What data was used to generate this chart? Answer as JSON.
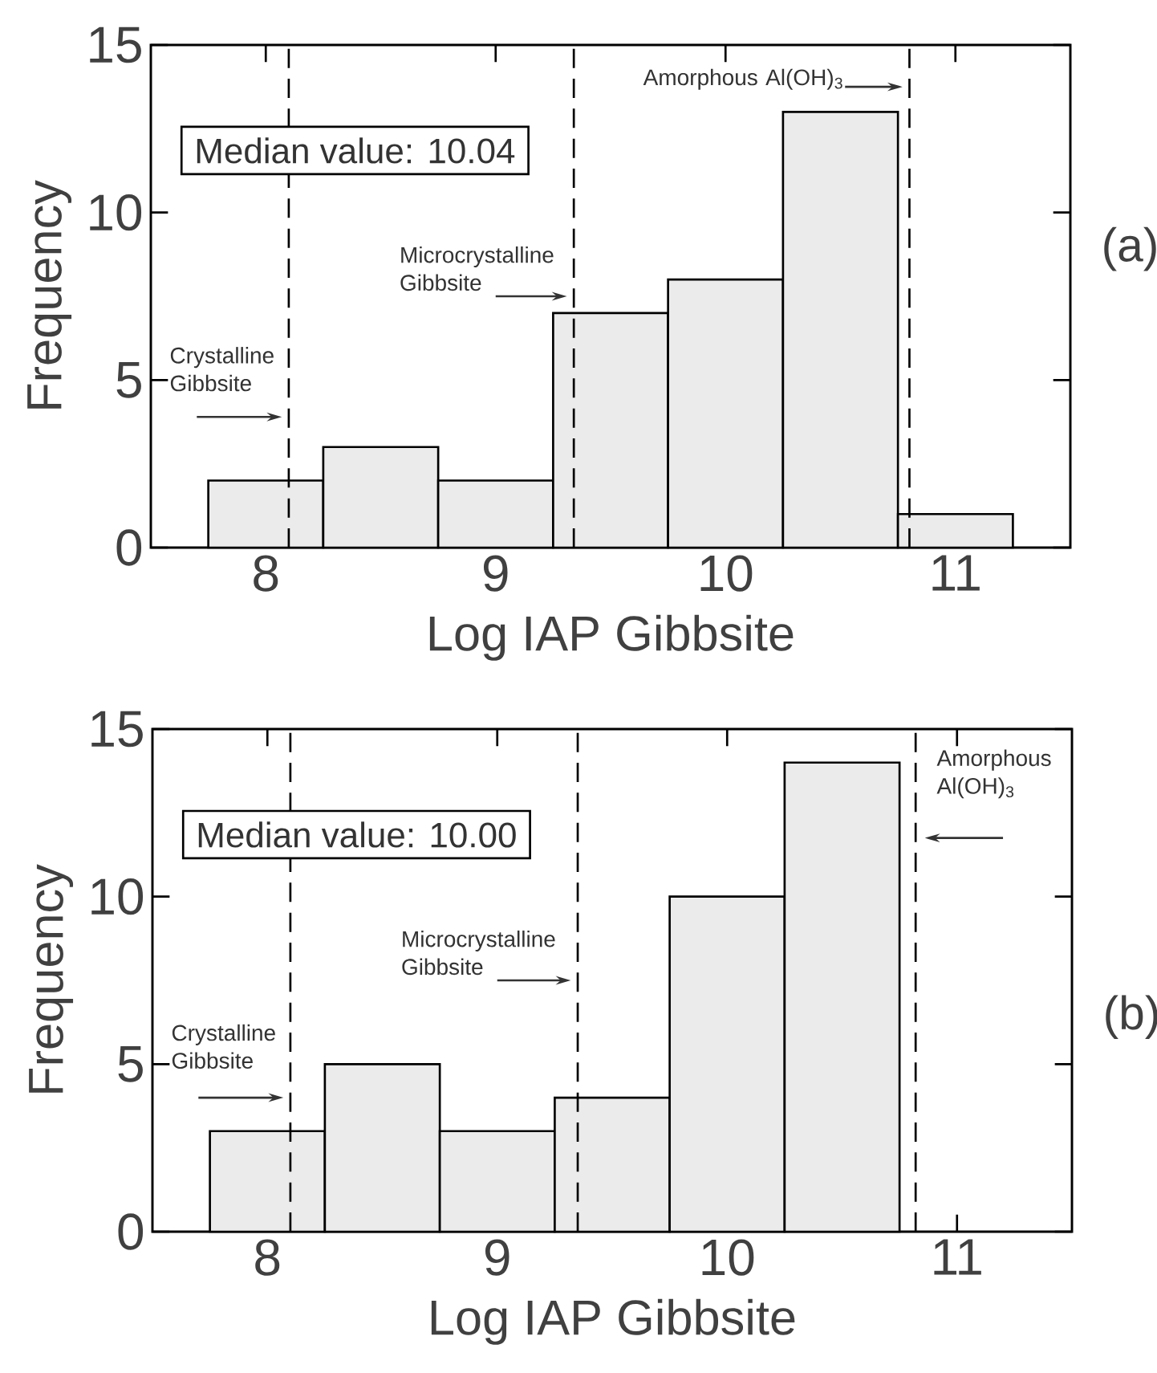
{
  "chart_data": [
    {
      "type": "histogram",
      "bins": [
        7.75,
        8.25,
        8.75,
        9.25,
        9.75,
        10.25,
        10.75,
        11.25
      ],
      "values": [
        2,
        3,
        2,
        7,
        8,
        13,
        1
      ],
      "color": "#ebebeb",
      "xlim": [
        7.5,
        11.5
      ],
      "ylim": [
        0,
        15
      ],
      "xticks": [
        8,
        9,
        10,
        11
      ],
      "yticks": [
        0,
        5,
        10,
        15
      ],
      "xlabel": "Log IAP Gibbsite",
      "ylabel": "Frequency",
      "ref_lines": [
        {
          "axis": "x",
          "value": 8.1,
          "label": "Crystalline Gibbsite",
          "line_style": "dashed"
        },
        {
          "axis": "x",
          "value": 9.34,
          "label": "Microcrystalline Gibbsite",
          "line_style": "dashed"
        },
        {
          "axis": "x",
          "value": 10.8,
          "label": "Amorphous Al(OH)$_{3}$",
          "line_style": "dashed"
        }
      ],
      "annotations": [
        "Median value: 10.04",
        "(a)"
      ]
    },
    {
      "type": "histogram",
      "bins": [
        7.75,
        8.25,
        8.75,
        9.25,
        9.75,
        10.25,
        10.75
      ],
      "values": [
        3,
        5,
        3,
        4,
        10,
        14
      ],
      "color": "#ebebeb",
      "xlim": [
        7.5,
        11.5
      ],
      "ylim": [
        0,
        15
      ],
      "xticks": [
        8,
        9,
        10,
        11
      ],
      "yticks": [
        0,
        5,
        10,
        15
      ],
      "xlabel": "Log IAP Gibbsite",
      "ylabel": "Frequency",
      "ref_lines": [
        {
          "axis": "x",
          "value": 8.1,
          "label": "Crystalline Gibbsite",
          "line_style": "dashed"
        },
        {
          "axis": "x",
          "value": 9.35,
          "label": "Microcrystalline Gibbsite",
          "line_style": "dashed"
        },
        {
          "axis": "x",
          "value": 10.82,
          "label": "Amorphous Al(OH)$_{3}$",
          "line_style": "dashed"
        }
      ],
      "annotations": [
        "Median value: 10.00",
        "(b)"
      ]
    }
  ]
}
